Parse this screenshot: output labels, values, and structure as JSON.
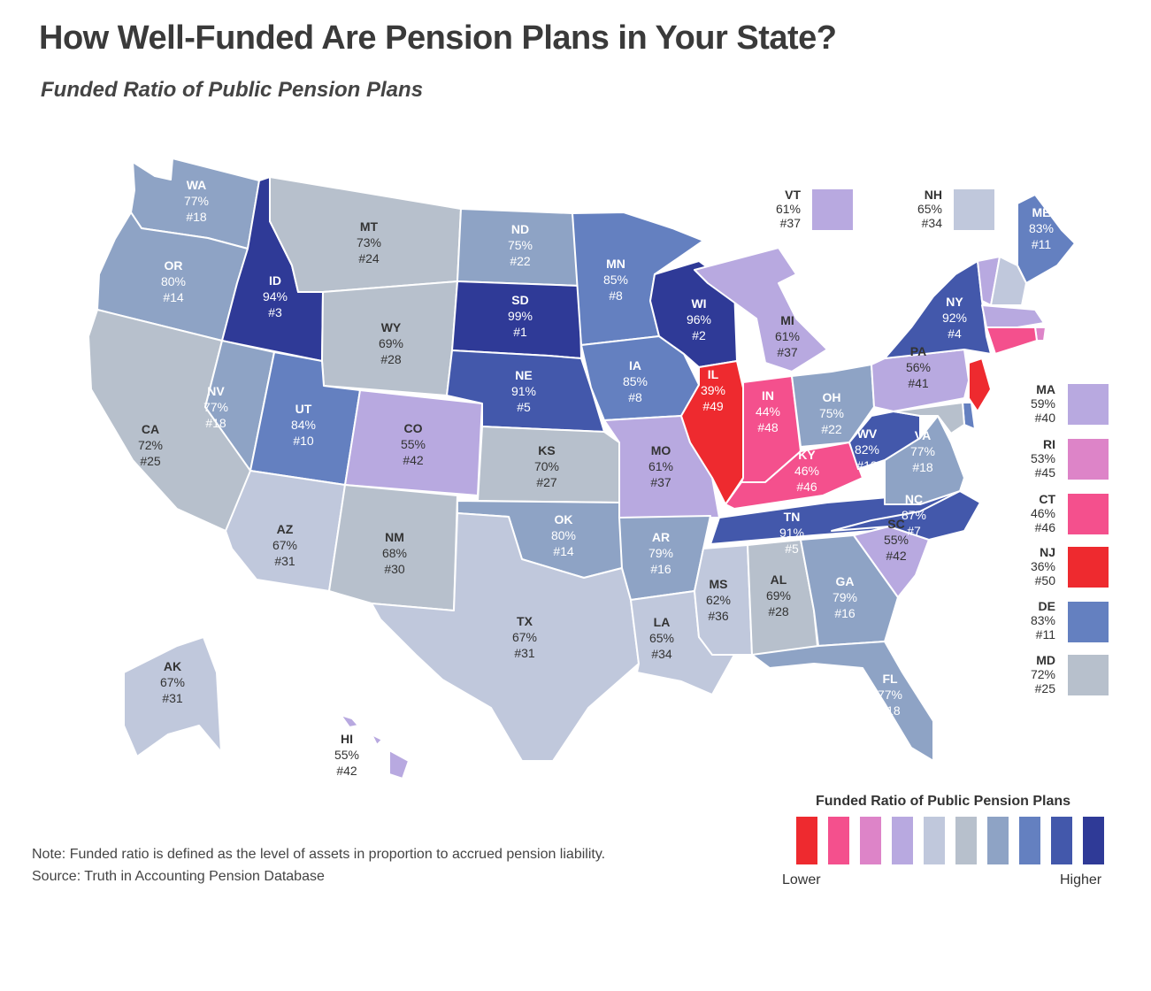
{
  "title": "How Well-Funded Are Pension Plans in Your State?",
  "subtitle": "Funded Ratio of Public Pension Plans",
  "note": "Note: Funded ratio is defined as the level of assets in proportion to accrued pension liability.",
  "source": "Source: Truth in Accounting Pension Database",
  "legend": {
    "title": "Funded Ratio of Public Pension Plans",
    "low_label": "Lower",
    "high_label": "Higher",
    "colors": [
      "#ee2a2f",
      "#f4508d",
      "#dd84c8",
      "#b8a9e0",
      "#c0c8dc",
      "#b7c0cc",
      "#8ea3c5",
      "#6480c0",
      "#4358ab",
      "#2f3a97"
    ]
  },
  "states": [
    {
      "abbr": "WA",
      "value": "77%",
      "rank": "#18",
      "funded_pct": 77,
      "color": "#8ea3c5",
      "text_color": "#ffffff"
    },
    {
      "abbr": "OR",
      "value": "80%",
      "rank": "#14",
      "funded_pct": 80,
      "color": "#8ea3c5",
      "text_color": "#ffffff"
    },
    {
      "abbr": "CA",
      "value": "72%",
      "rank": "#25",
      "funded_pct": 72,
      "color": "#b7c0cc",
      "text_color": "#333333"
    },
    {
      "abbr": "ID",
      "value": "94%",
      "rank": "#3",
      "funded_pct": 94,
      "color": "#2f3a97",
      "text_color": "#ffffff"
    },
    {
      "abbr": "NV",
      "value": "77%",
      "rank": "#18",
      "funded_pct": 77,
      "color": "#8ea3c5",
      "text_color": "#ffffff"
    },
    {
      "abbr": "MT",
      "value": "73%",
      "rank": "#24",
      "funded_pct": 73,
      "color": "#b7c0cc",
      "text_color": "#333333"
    },
    {
      "abbr": "WY",
      "value": "69%",
      "rank": "#28",
      "funded_pct": 69,
      "color": "#b7c0cc",
      "text_color": "#333333"
    },
    {
      "abbr": "UT",
      "value": "84%",
      "rank": "#10",
      "funded_pct": 84,
      "color": "#6480c0",
      "text_color": "#ffffff"
    },
    {
      "abbr": "AZ",
      "value": "67%",
      "rank": "#31",
      "funded_pct": 67,
      "color": "#c0c8dc",
      "text_color": "#333333"
    },
    {
      "abbr": "CO",
      "value": "55%",
      "rank": "#42",
      "funded_pct": 55,
      "color": "#b8a9e0",
      "text_color": "#333333"
    },
    {
      "abbr": "NM",
      "value": "68%",
      "rank": "#30",
      "funded_pct": 68,
      "color": "#b7c0cc",
      "text_color": "#333333"
    },
    {
      "abbr": "ND",
      "value": "75%",
      "rank": "#22",
      "funded_pct": 75,
      "color": "#8ea3c5",
      "text_color": "#ffffff"
    },
    {
      "abbr": "SD",
      "value": "99%",
      "rank": "#1",
      "funded_pct": 99,
      "color": "#2f3a97",
      "text_color": "#ffffff"
    },
    {
      "abbr": "NE",
      "value": "91%",
      "rank": "#5",
      "funded_pct": 91,
      "color": "#4358ab",
      "text_color": "#ffffff"
    },
    {
      "abbr": "KS",
      "value": "70%",
      "rank": "#27",
      "funded_pct": 70,
      "color": "#b7c0cc",
      "text_color": "#333333"
    },
    {
      "abbr": "OK",
      "value": "80%",
      "rank": "#14",
      "funded_pct": 80,
      "color": "#8ea3c5",
      "text_color": "#ffffff"
    },
    {
      "abbr": "TX",
      "value": "67%",
      "rank": "#31",
      "funded_pct": 67,
      "color": "#c0c8dc",
      "text_color": "#333333"
    },
    {
      "abbr": "MN",
      "value": "85%",
      "rank": "#8",
      "funded_pct": 85,
      "color": "#6480c0",
      "text_color": "#ffffff"
    },
    {
      "abbr": "IA",
      "value": "85%",
      "rank": "#8",
      "funded_pct": 85,
      "color": "#6480c0",
      "text_color": "#ffffff"
    },
    {
      "abbr": "MO",
      "value": "61%",
      "rank": "#37",
      "funded_pct": 61,
      "color": "#b8a9e0",
      "text_color": "#333333"
    },
    {
      "abbr": "AR",
      "value": "79%",
      "rank": "#16",
      "funded_pct": 79,
      "color": "#8ea3c5",
      "text_color": "#ffffff"
    },
    {
      "abbr": "LA",
      "value": "65%",
      "rank": "#34",
      "funded_pct": 65,
      "color": "#c0c8dc",
      "text_color": "#333333"
    },
    {
      "abbr": "WI",
      "value": "96%",
      "rank": "#2",
      "funded_pct": 96,
      "color": "#2f3a97",
      "text_color": "#ffffff"
    },
    {
      "abbr": "IL",
      "value": "39%",
      "rank": "#49",
      "funded_pct": 39,
      "color": "#ee2a2f",
      "text_color": "#ffffff"
    },
    {
      "abbr": "MI",
      "value": "61%",
      "rank": "#37",
      "funded_pct": 61,
      "color": "#b8a9e0",
      "text_color": "#333333"
    },
    {
      "abbr": "IN",
      "value": "44%",
      "rank": "#48",
      "funded_pct": 44,
      "color": "#f4508d",
      "text_color": "#ffffff"
    },
    {
      "abbr": "OH",
      "value": "75%",
      "rank": "#22",
      "funded_pct": 75,
      "color": "#8ea3c5",
      "text_color": "#ffffff"
    },
    {
      "abbr": "KY",
      "value": "46%",
      "rank": "#46",
      "funded_pct": 46,
      "color": "#f4508d",
      "text_color": "#ffffff"
    },
    {
      "abbr": "TN",
      "value": "91%",
      "rank": "#5",
      "funded_pct": 91,
      "color": "#4358ab",
      "text_color": "#ffffff"
    },
    {
      "abbr": "MS",
      "value": "62%",
      "rank": "#36",
      "funded_pct": 62,
      "color": "#c0c8dc",
      "text_color": "#333333"
    },
    {
      "abbr": "AL",
      "value": "69%",
      "rank": "#28",
      "funded_pct": 69,
      "color": "#b7c0cc",
      "text_color": "#333333"
    },
    {
      "abbr": "GA",
      "value": "79%",
      "rank": "#16",
      "funded_pct": 79,
      "color": "#8ea3c5",
      "text_color": "#ffffff"
    },
    {
      "abbr": "FL",
      "value": "77%",
      "rank": "#18",
      "funded_pct": 77,
      "color": "#8ea3c5",
      "text_color": "#ffffff"
    },
    {
      "abbr": "SC",
      "value": "55%",
      "rank": "#42",
      "funded_pct": 55,
      "color": "#b8a9e0",
      "text_color": "#333333"
    },
    {
      "abbr": "NC",
      "value": "87%",
      "rank": "#7",
      "funded_pct": 87,
      "color": "#4358ab",
      "text_color": "#ffffff"
    },
    {
      "abbr": "VA",
      "value": "77%",
      "rank": "#18",
      "funded_pct": 77,
      "color": "#8ea3c5",
      "text_color": "#ffffff"
    },
    {
      "abbr": "WV",
      "value": "82%",
      "rank": "#13",
      "funded_pct": 82,
      "color": "#4358ab",
      "text_color": "#ffffff"
    },
    {
      "abbr": "PA",
      "value": "56%",
      "rank": "#41",
      "funded_pct": 56,
      "color": "#b8a9e0",
      "text_color": "#333333"
    },
    {
      "abbr": "NY",
      "value": "92%",
      "rank": "#4",
      "funded_pct": 92,
      "color": "#4358ab",
      "text_color": "#ffffff"
    },
    {
      "abbr": "ME",
      "value": "83%",
      "rank": "#11",
      "funded_pct": 83,
      "color": "#6480c0",
      "text_color": "#ffffff"
    },
    {
      "abbr": "AK",
      "value": "67%",
      "rank": "#31",
      "funded_pct": 67,
      "color": "#c0c8dc",
      "text_color": "#333333"
    },
    {
      "abbr": "HI",
      "value": "55%",
      "rank": "#42",
      "funded_pct": 55,
      "color": "#b8a9e0",
      "text_color": "#333333"
    }
  ],
  "small_states": [
    {
      "abbr": "VT",
      "value": "61%",
      "rank": "#37",
      "funded_pct": 61,
      "color": "#b8a9e0"
    },
    {
      "abbr": "NH",
      "value": "65%",
      "rank": "#34",
      "funded_pct": 65,
      "color": "#c0c8dc"
    },
    {
      "abbr": "MA",
      "value": "59%",
      "rank": "#40",
      "funded_pct": 59,
      "color": "#b8a9e0"
    },
    {
      "abbr": "RI",
      "value": "53%",
      "rank": "#45",
      "funded_pct": 53,
      "color": "#dd84c8"
    },
    {
      "abbr": "CT",
      "value": "46%",
      "rank": "#46",
      "funded_pct": 46,
      "color": "#f4508d"
    },
    {
      "abbr": "NJ",
      "value": "36%",
      "rank": "#50",
      "funded_pct": 36,
      "color": "#ee2a2f"
    },
    {
      "abbr": "DE",
      "value": "83%",
      "rank": "#11",
      "funded_pct": 83,
      "color": "#6480c0"
    },
    {
      "abbr": "MD",
      "value": "72%",
      "rank": "#25",
      "funded_pct": 72,
      "color": "#b7c0cc"
    }
  ]
}
